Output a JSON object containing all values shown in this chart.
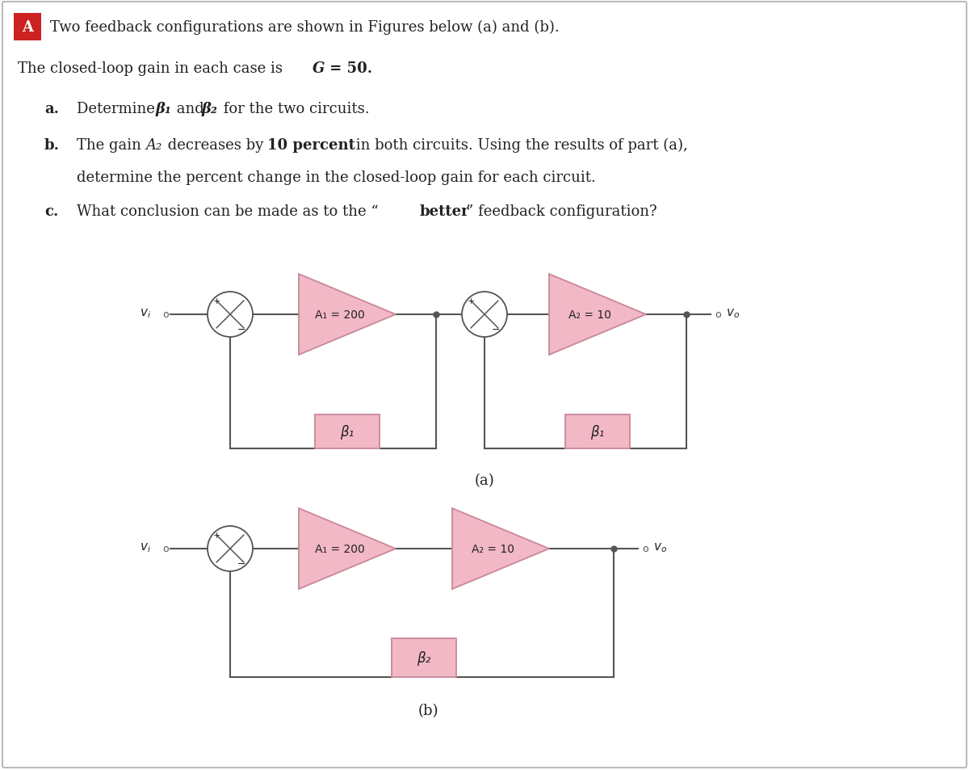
{
  "bg_color": "#ffffff",
  "border_color": "#bbbbbb",
  "pink_fill": "#f2b8c6",
  "pink_edge": "#c88898",
  "line_color": "#555555",
  "text_color": "#222222",
  "title_box_color": "#cc2222",
  "title_text": "A",
  "label_a": "(a)",
  "label_b": "(b)",
  "A1_label": "A₁ = 200",
  "A2_label": "A₂ = 10",
  "beta1_label": "β₁",
  "beta2_label": "β₂"
}
